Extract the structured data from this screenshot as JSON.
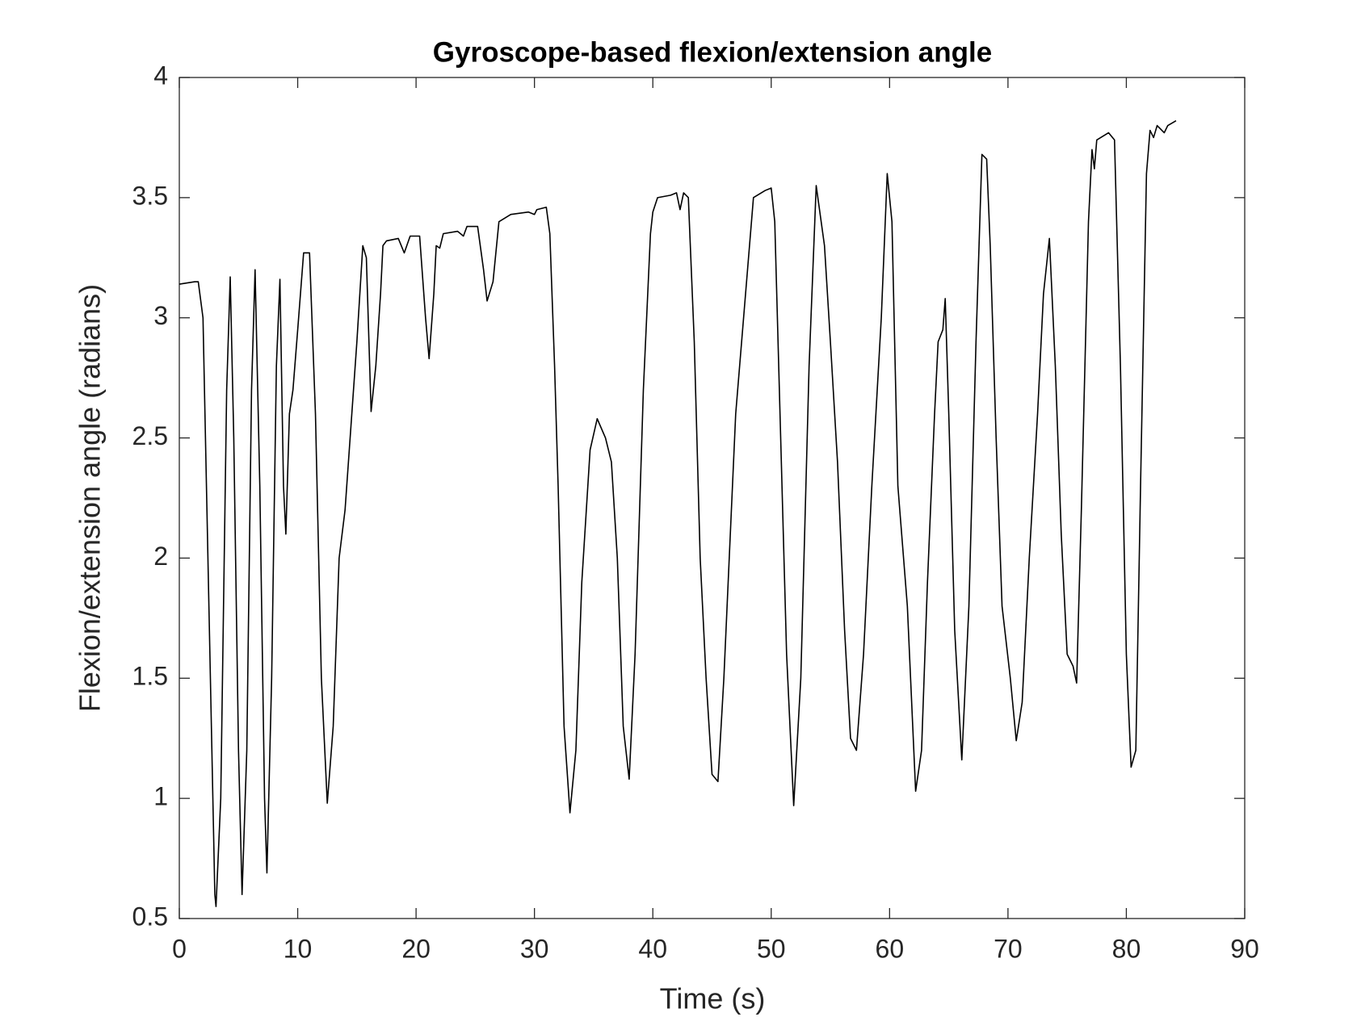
{
  "chart_data": {
    "type": "line",
    "title": "Gyroscope-based flexion/extension angle",
    "x_label": "Time (s)",
    "y_label": "Flexion/extension angle (radians)",
    "xlim": [
      0,
      90
    ],
    "ylim": [
      0.5,
      4
    ],
    "xticks": [
      0,
      10,
      20,
      30,
      40,
      50,
      60,
      70,
      80,
      90
    ],
    "yticks": [
      0.5,
      1,
      1.5,
      2,
      2.5,
      3,
      3.5,
      4
    ],
    "series": [
      {
        "color": "#000000",
        "x": [
          0,
          1.3,
          1.6,
          2.0,
          2.5,
          3.0,
          3.1,
          3.5,
          4.0,
          4.3,
          4.6,
          5.0,
          5.3,
          5.7,
          6.1,
          6.4,
          6.8,
          7.2,
          7.4,
          7.8,
          8.2,
          8.5,
          8.8,
          9.0,
          9.3,
          9.6,
          10.0,
          10.5,
          11.0,
          11.5,
          12.0,
          12.5,
          13.0,
          13.5,
          14.0,
          14.5,
          15.0,
          15.5,
          15.8,
          16.2,
          16.6,
          17.0,
          17.2,
          17.5,
          18.5,
          19.0,
          19.5,
          20.3,
          20.8,
          21.1,
          21.5,
          21.7,
          22.0,
          22.3,
          23.5,
          24.0,
          24.3,
          25.2,
          25.7,
          26.0,
          26.5,
          27.0,
          28.0,
          29.5,
          30.0,
          30.2,
          31.0,
          31.3,
          31.7,
          32.0,
          32.5,
          33.0,
          33.5,
          34.0,
          34.7,
          35.3,
          36.0,
          36.5,
          37.0,
          37.5,
          38.0,
          38.5,
          39.2,
          39.8,
          40.0,
          40.4,
          41.5,
          42.0,
          42.3,
          42.6,
          43.0,
          43.5,
          44.0,
          44.5,
          45.0,
          45.5,
          46.0,
          47.0,
          48.0,
          48.5,
          49.5,
          50.0,
          50.3,
          50.8,
          51.3,
          51.9,
          52.5,
          53.2,
          53.8,
          54.5,
          55.0,
          55.6,
          56.2,
          56.7,
          57.2,
          57.8,
          58.5,
          59.3,
          59.8,
          60.2,
          60.7,
          61.5,
          62.2,
          62.7,
          63.2,
          63.8,
          64.1,
          64.5,
          64.7,
          65.0,
          65.5,
          66.1,
          66.7,
          67.3,
          67.8,
          68.2,
          68.5,
          69.0,
          69.5,
          70.2,
          70.7,
          71.2,
          71.8,
          72.5,
          73.0,
          73.5,
          74.0,
          74.5,
          75.0,
          75.5,
          75.8,
          76.2,
          76.8,
          77.1,
          77.3,
          77.5,
          78.5,
          79.0,
          79.5,
          80.0,
          80.4,
          80.8,
          81.2,
          81.7,
          82.0,
          82.3,
          82.6,
          83.2,
          83.5,
          84.2
        ],
        "values": [
          3.14,
          3.15,
          3.15,
          3.0,
          1.8,
          0.6,
          0.55,
          1.0,
          2.7,
          3.17,
          2.5,
          1.2,
          0.6,
          1.2,
          2.7,
          3.2,
          2.3,
          1.0,
          0.69,
          1.5,
          2.8,
          3.16,
          2.3,
          2.1,
          2.6,
          2.7,
          2.95,
          3.27,
          3.27,
          2.6,
          1.5,
          0.98,
          1.3,
          2.0,
          2.2,
          2.55,
          2.9,
          3.3,
          3.25,
          2.61,
          2.8,
          3.1,
          3.3,
          3.32,
          3.33,
          3.27,
          3.34,
          3.34,
          3.0,
          2.83,
          3.1,
          3.3,
          3.29,
          3.35,
          3.36,
          3.34,
          3.38,
          3.38,
          3.2,
          3.07,
          3.15,
          3.4,
          3.43,
          3.44,
          3.43,
          3.45,
          3.46,
          3.35,
          2.8,
          2.3,
          1.3,
          0.94,
          1.2,
          1.9,
          2.45,
          2.58,
          2.5,
          2.4,
          2.0,
          1.3,
          1.08,
          1.6,
          2.7,
          3.35,
          3.44,
          3.5,
          3.51,
          3.52,
          3.45,
          3.52,
          3.5,
          2.9,
          2.0,
          1.5,
          1.1,
          1.07,
          1.5,
          2.6,
          3.2,
          3.5,
          3.53,
          3.54,
          3.4,
          2.5,
          1.6,
          0.97,
          1.5,
          2.8,
          3.55,
          3.3,
          2.9,
          2.4,
          1.7,
          1.25,
          1.2,
          1.6,
          2.3,
          3.0,
          3.6,
          3.4,
          2.3,
          1.8,
          1.03,
          1.2,
          1.9,
          2.6,
          2.9,
          2.95,
          3.08,
          2.6,
          1.7,
          1.16,
          1.8,
          2.9,
          3.68,
          3.66,
          3.3,
          2.5,
          1.8,
          1.5,
          1.24,
          1.4,
          2.0,
          2.6,
          3.1,
          3.33,
          2.8,
          2.1,
          1.6,
          1.55,
          1.48,
          2.2,
          3.4,
          3.7,
          3.62,
          3.74,
          3.77,
          3.74,
          2.8,
          1.6,
          1.13,
          1.2,
          2.3,
          3.6,
          3.78,
          3.75,
          3.8,
          3.77,
          3.8,
          3.82
        ]
      }
    ]
  }
}
